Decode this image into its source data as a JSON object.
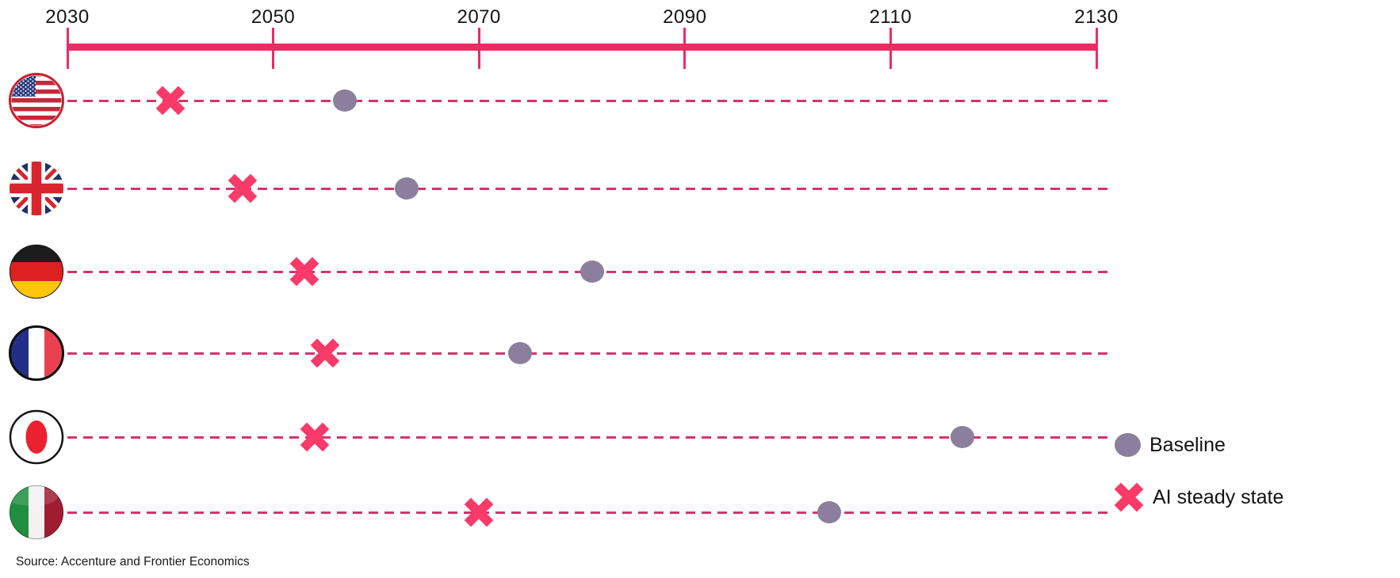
{
  "chart_data": {
    "type": "scatter",
    "x_axis": {
      "min": 2030,
      "max": 2130,
      "ticks": [
        2030,
        2050,
        2070,
        2090,
        2110,
        2130
      ]
    },
    "legend": {
      "position": "right",
      "items": [
        {
          "label": "Baseline",
          "marker": "circle",
          "color": "#8c7e9d"
        },
        {
          "label": "AI steady state",
          "marker": "cross",
          "color": "#fa3a68"
        }
      ]
    },
    "rows": [
      {
        "id": "us",
        "country": "United States",
        "icon": "us-flag-icon",
        "ai_steady_state": 2040,
        "baseline": 2057
      },
      {
        "id": "uk",
        "country": "United Kingdom",
        "icon": "uk-flag-icon",
        "ai_steady_state": 2047,
        "baseline": 2063
      },
      {
        "id": "de",
        "country": "Germany",
        "icon": "germany-flag-icon",
        "ai_steady_state": 2053,
        "baseline": 2081
      },
      {
        "id": "fr",
        "country": "France",
        "icon": "france-flag-icon",
        "ai_steady_state": 2055,
        "baseline": 2074
      },
      {
        "id": "jp",
        "country": "Japan",
        "icon": "japan-flag-icon",
        "ai_steady_state": 2054,
        "baseline": 2117
      },
      {
        "id": "it",
        "country": "Italy",
        "icon": "italy-flag-icon",
        "ai_steady_state": 2070,
        "baseline": 2104
      }
    ],
    "colors": {
      "axis": "#ed2b64",
      "dashed_line": "#d6336d",
      "baseline_marker": "#8c7e9d",
      "ai_marker": "#fa3a68"
    }
  },
  "source": {
    "text": "Source: Accenture and Frontier Economics"
  }
}
